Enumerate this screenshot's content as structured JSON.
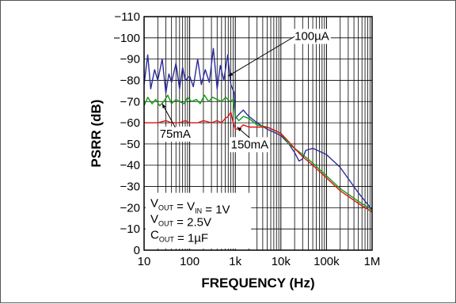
{
  "chart_data": {
    "type": "line",
    "xlabel": "FREQUENCY (Hz)",
    "ylabel": "PSRR (dB)",
    "xscale": "log",
    "xlim": [
      10,
      1000000
    ],
    "ylim": [
      0,
      -110
    ],
    "grid": true,
    "x_ticks": [
      10,
      100,
      1000,
      10000,
      100000,
      1000000
    ],
    "x_tick_labels": [
      "10",
      "100",
      "1k",
      "10k",
      "100k",
      "1M"
    ],
    "y_ticks": [
      0,
      -10,
      -20,
      -30,
      -40,
      -50,
      -60,
      -70,
      -80,
      -90,
      -100,
      -110
    ],
    "y_tick_labels": [
      "0",
      "−10",
      "−20",
      "−30",
      "−40",
      "−50",
      "−60",
      "−70",
      "−80",
      "−90",
      "−100",
      "−110"
    ],
    "colors": {
      "100uA": "#2b2b9c",
      "75mA": "#119911",
      "150mA": "#dd1111",
      "grid": "#000000"
    },
    "series": [
      {
        "name": "100µA",
        "color": "#2b2b9c",
        "x": [
          10,
          12,
          14,
          17,
          20,
          25,
          30,
          35,
          40,
          50,
          60,
          70,
          80,
          100,
          120,
          150,
          180,
          220,
          270,
          330,
          400,
          470,
          560,
          680,
          800,
          950,
          1000,
          1200,
          1500,
          1800,
          2000,
          3000,
          5000,
          8000,
          10000,
          15000,
          20000,
          25000,
          30000,
          35000,
          50000,
          100000,
          200000,
          500000,
          1000000
        ],
        "y": [
          -78,
          -92,
          -76,
          -85,
          -80,
          -90,
          -74,
          -83,
          -79,
          -88,
          -76,
          -86,
          -80,
          -82,
          -77,
          -90,
          -78,
          -85,
          -79,
          -95,
          -76,
          -87,
          -80,
          -92,
          -78,
          -74,
          -62,
          -64,
          -66,
          -64,
          -63,
          -60,
          -57,
          -55,
          -54,
          -50,
          -46,
          -42,
          -43,
          -47,
          -48,
          -45,
          -39,
          -27,
          -19
        ]
      },
      {
        "name": "75mA",
        "color": "#119911",
        "x": [
          10,
          12,
          15,
          18,
          22,
          27,
          33,
          40,
          50,
          60,
          75,
          90,
          110,
          140,
          170,
          210,
          260,
          320,
          400,
          500,
          620,
          750,
          900,
          1000,
          1200,
          1500,
          2000,
          3000,
          5000,
          8000,
          10000,
          15000,
          20000,
          30000,
          50000,
          100000,
          200000,
          500000,
          1000000
        ],
        "y": [
          -68,
          -72,
          -69,
          -71,
          -68,
          -70,
          -73,
          -69,
          -71,
          -70,
          -69,
          -72,
          -70,
          -71,
          -69,
          -73,
          -70,
          -72,
          -71,
          -70,
          -72,
          -70,
          -71,
          -63,
          -61,
          -63,
          -62,
          -59,
          -58,
          -56,
          -55,
          -50,
          -48,
          -45,
          -41,
          -35,
          -29,
          -23,
          -19
        ]
      },
      {
        "name": "150mA",
        "color": "#dd1111",
        "x": [
          10,
          15,
          20,
          30,
          40,
          60,
          80,
          100,
          150,
          200,
          300,
          400,
          500,
          600,
          700,
          800,
          900,
          1000,
          1200,
          1500,
          2000,
          3000,
          5000,
          8000,
          10000,
          15000,
          20000,
          30000,
          50000,
          100000,
          200000,
          500000,
          1000000
        ],
        "y": [
          -60,
          -60,
          -60,
          -61,
          -60,
          -60,
          -61,
          -60,
          -60,
          -61,
          -60,
          -61,
          -60,
          -62,
          -63,
          -65,
          -60,
          -57,
          -57,
          -59,
          -58,
          -58,
          -58,
          -56,
          -55,
          -51,
          -48,
          -44,
          -40,
          -34,
          -28,
          -22,
          -18
        ]
      }
    ],
    "annotations": [
      {
        "text": "100µA",
        "series": "100µA"
      },
      {
        "text": "75mA",
        "series": "75mA"
      },
      {
        "text": "150mA",
        "series": "150mA"
      }
    ],
    "conditions": [
      {
        "parts": [
          {
            "t": "V"
          },
          {
            "t": "OUT",
            "sub": true
          },
          {
            "t": " = V"
          },
          {
            "t": "IN",
            "sub": true
          },
          {
            "t": " = 1V"
          }
        ]
      },
      {
        "parts": [
          {
            "t": "V"
          },
          {
            "t": "OUT",
            "sub": true
          },
          {
            "t": " = 2.5V"
          }
        ]
      },
      {
        "parts": [
          {
            "t": "C"
          },
          {
            "t": "OUT",
            "sub": true
          },
          {
            "t": " = 1µF"
          }
        ]
      }
    ]
  }
}
